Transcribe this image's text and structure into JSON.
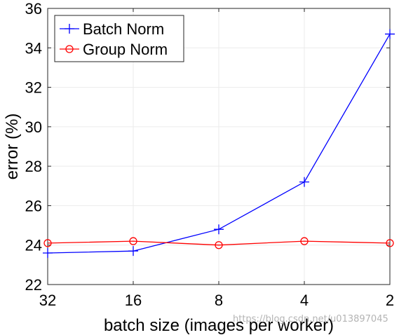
{
  "chart_data": {
    "type": "line",
    "x_categories": [
      "32",
      "16",
      "8",
      "4",
      "2"
    ],
    "xlabel": "batch size (images per worker)",
    "ylabel": "error (%)",
    "ylim": [
      22,
      36
    ],
    "yticks": [
      "22",
      "24",
      "26",
      "28",
      "30",
      "32",
      "34",
      "36"
    ],
    "grid": true,
    "legend_position": "top-left",
    "series": [
      {
        "name": "Batch Norm",
        "marker": "plus",
        "color": "#0000ff",
        "values": [
          23.6,
          23.7,
          24.8,
          27.2,
          34.7
        ]
      },
      {
        "name": "Group Norm",
        "marker": "circle",
        "color": "#ff0000",
        "values": [
          24.1,
          24.2,
          24.0,
          24.2,
          24.1
        ]
      }
    ]
  },
  "watermark": "https://blog.csdn.net/u013897045"
}
